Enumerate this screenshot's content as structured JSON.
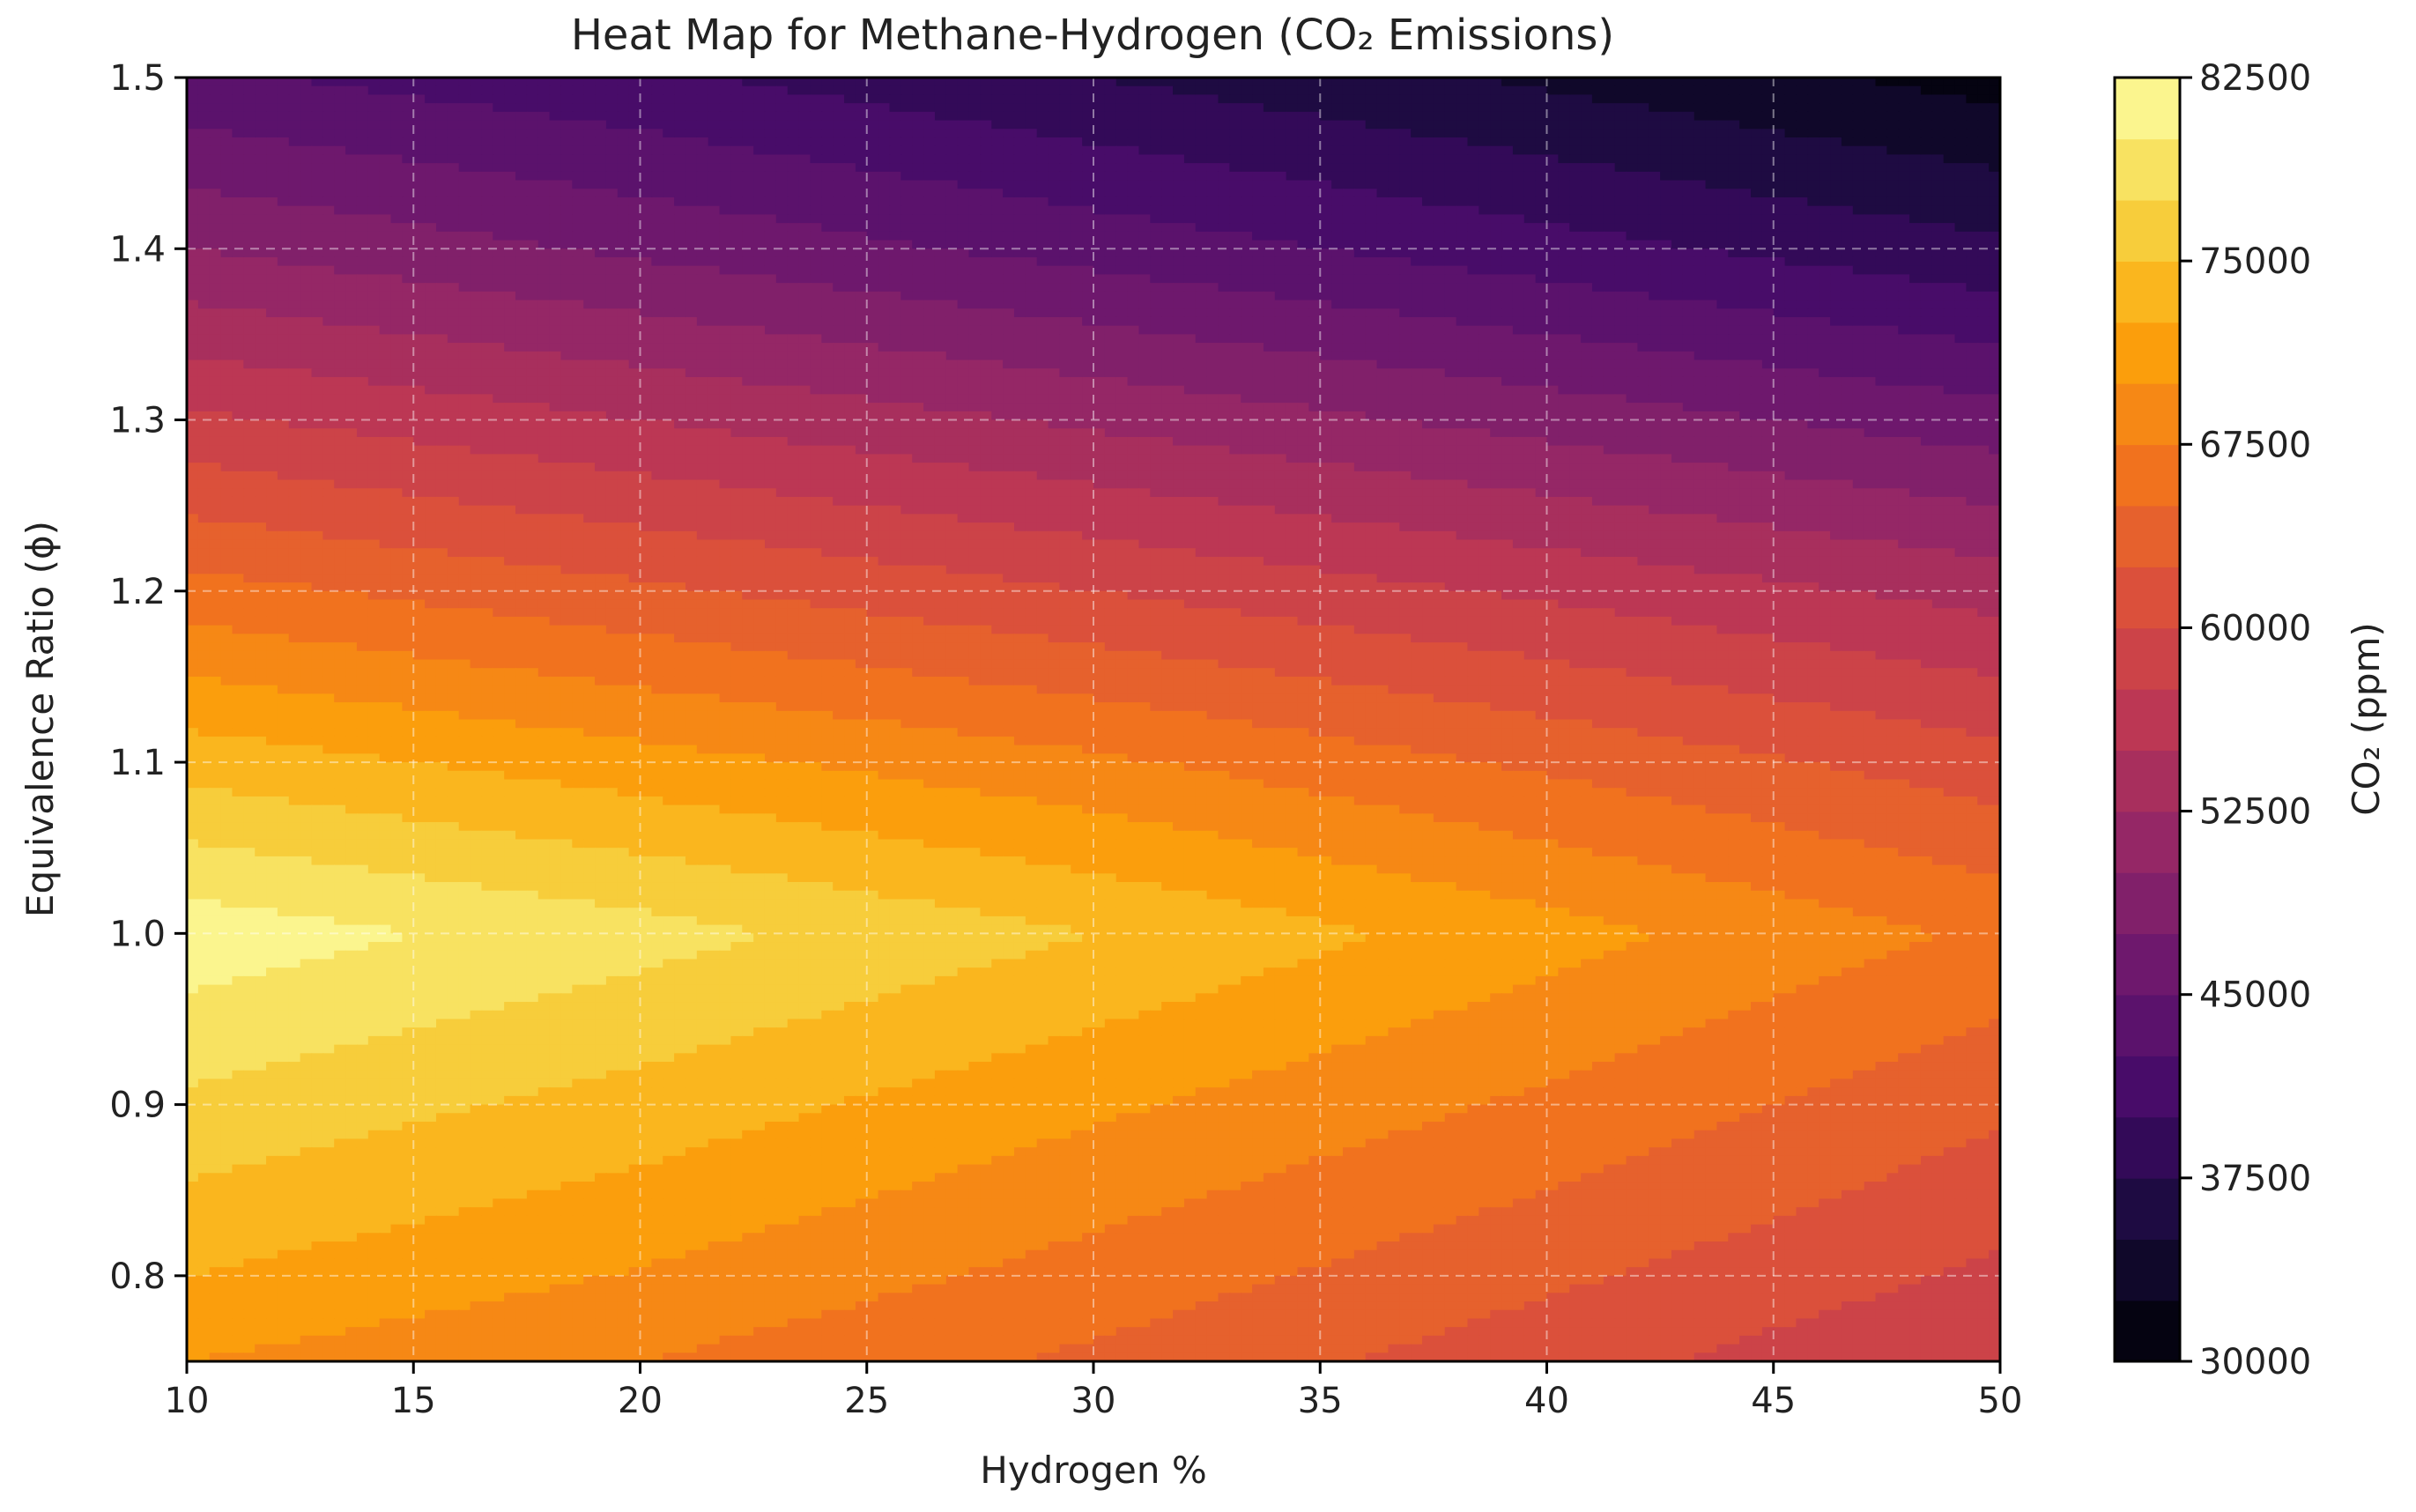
{
  "chart_data": {
    "type": "heatmap",
    "subtype": "filled-contour",
    "title": "Heat Map for Methane-Hydrogen (CO₂ Emissions)",
    "xlabel": "Hydrogen %",
    "ylabel": "Equivalence Ratio (ϕ)",
    "colorbar_label": "CO₂ (ppm)",
    "colormap": "inferno",
    "xlim": [
      10,
      50
    ],
    "ylim": [
      0.75,
      1.5
    ],
    "zlim": [
      30000,
      82500
    ],
    "x_ticks": [
      "10",
      "15",
      "20",
      "25",
      "30",
      "35",
      "40",
      "45",
      "50"
    ],
    "y_ticks": [
      "0.8",
      "0.9",
      "1.0",
      "1.1",
      "1.2",
      "1.3",
      "1.4",
      "1.5"
    ],
    "colorbar_ticks": [
      "30000",
      "37500",
      "45000",
      "52500",
      "60000",
      "67500",
      "75000",
      "82500"
    ],
    "contour_levels": [
      30000,
      32500,
      35000,
      37500,
      40000,
      42500,
      45000,
      47500,
      50000,
      52500,
      55000,
      57500,
      60000,
      62500,
      65000,
      67500,
      70000,
      72500,
      75000,
      77500,
      80000,
      82500
    ],
    "grid": true,
    "grid_style": "dashed",
    "x": [
      10,
      20,
      30,
      40,
      50
    ],
    "y": [
      0.75,
      0.8,
      0.9,
      1.0,
      1.1,
      1.2,
      1.3,
      1.4,
      1.5
    ],
    "z": [
      [
        70000,
        67500,
        64500,
        61000,
        57500
      ],
      [
        72500,
        69800,
        66500,
        63000,
        59500
      ],
      [
        77000,
        74000,
        70500,
        67000,
        63000
      ],
      [
        81500,
        78500,
        75000,
        71000,
        67000
      ],
      [
        74000,
        71000,
        68000,
        64500,
        61000
      ],
      [
        66000,
        63000,
        60000,
        57000,
        54000
      ],
      [
        58000,
        55000,
        52000,
        49000,
        46000
      ],
      [
        50000,
        47000,
        44000,
        41000,
        38000
      ],
      [
        43000,
        40500,
        37500,
        34500,
        31500
      ]
    ]
  }
}
